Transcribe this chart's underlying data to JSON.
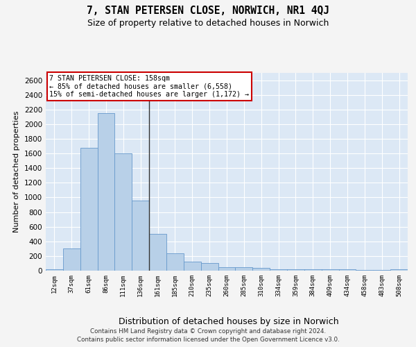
{
  "title": "7, STAN PETERSEN CLOSE, NORWICH, NR1 4QJ",
  "subtitle": "Size of property relative to detached houses in Norwich",
  "xlabel": "Distribution of detached houses by size in Norwich",
  "ylabel": "Number of detached properties",
  "categories": [
    "12sqm",
    "37sqm",
    "61sqm",
    "86sqm",
    "111sqm",
    "136sqm",
    "161sqm",
    "185sqm",
    "210sqm",
    "235sqm",
    "260sqm",
    "285sqm",
    "310sqm",
    "334sqm",
    "359sqm",
    "384sqm",
    "409sqm",
    "434sqm",
    "458sqm",
    "483sqm",
    "508sqm"
  ],
  "values": [
    22,
    300,
    1675,
    2150,
    1600,
    960,
    505,
    235,
    120,
    100,
    50,
    50,
    35,
    20,
    20,
    20,
    20,
    15,
    5,
    5,
    22
  ],
  "bar_color": "#b8d0e8",
  "bar_edge_color": "#6699cc",
  "background_color": "#dce8f5",
  "grid_color": "#ffffff",
  "annotation_box_text_line1": "7 STAN PETERSEN CLOSE: 158sqm",
  "annotation_box_text_line2": "← 85% of detached houses are smaller (6,558)",
  "annotation_box_text_line3": "15% of semi-detached houses are larger (1,172) →",
  "annotation_box_color": "#ffffff",
  "annotation_box_edge_color": "#cc0000",
  "vline_color": "#333333",
  "footer_line1": "Contains HM Land Registry data © Crown copyright and database right 2024.",
  "footer_line2": "Contains public sector information licensed under the Open Government Licence v3.0.",
  "ylim": [
    0,
    2700
  ],
  "yticks": [
    0,
    200,
    400,
    600,
    800,
    1000,
    1200,
    1400,
    1600,
    1800,
    2000,
    2200,
    2400,
    2600
  ],
  "fig_bg": "#f4f4f4",
  "title_fontsize": 10.5,
  "subtitle_fontsize": 9,
  "ylabel_fontsize": 8,
  "xlabel_fontsize": 9
}
